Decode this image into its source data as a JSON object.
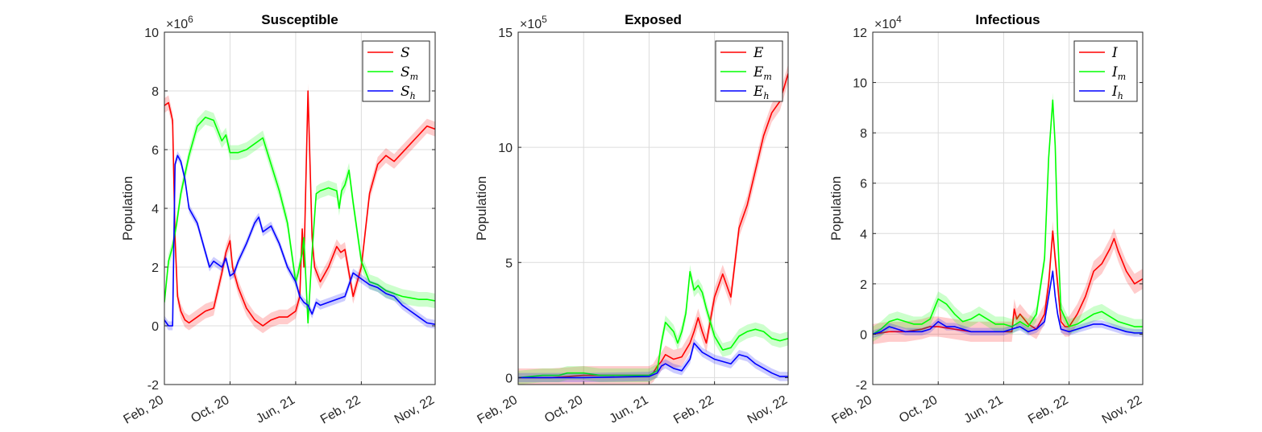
{
  "colors": {
    "S": "#ff0000",
    "Sm": "#00ff00",
    "Sh": "#0000ff",
    "grid": "#dcdcdc",
    "axis": "#262626"
  },
  "chart_data": [
    {
      "type": "line",
      "title": "Susceptible",
      "ylabel": "Population",
      "y_exponent_label": "×10",
      "y_exponent": "6",
      "ylim": [
        -2,
        10
      ],
      "yticks": [
        -2,
        0,
        2,
        4,
        6,
        8,
        10
      ],
      "ytick_labels": [
        "-2",
        "0",
        "2",
        "4",
        "6",
        "8",
        "10"
      ],
      "xlim": [
        0,
        33
      ],
      "xticks": [
        0,
        8,
        16,
        24,
        33
      ],
      "xtick_labels": [
        "Feb, 20",
        "Oct, 20",
        "Jun, 21",
        "Feb, 22",
        "Nov, 22"
      ],
      "legend_position": "top-right",
      "series": [
        {
          "name": "S",
          "sub": "",
          "color": "#ff0000",
          "band": 0.25,
          "x": [
            0,
            0.5,
            1,
            1.3,
            1.6,
            2,
            2.5,
            3,
            4,
            5,
            6,
            7,
            7.5,
            8,
            8.3,
            9,
            10,
            11,
            12,
            13,
            14,
            15,
            16,
            16.5,
            16.8,
            17,
            17.5,
            18,
            18.3,
            19,
            20,
            21,
            21.5,
            22,
            23,
            24,
            25,
            26,
            27,
            28,
            29,
            30,
            31,
            32,
            33
          ],
          "y": [
            7.5,
            7.6,
            7.0,
            3.0,
            1.0,
            0.5,
            0.2,
            0.1,
            0.3,
            0.5,
            0.6,
            1.8,
            2.5,
            2.9,
            2.0,
            1.3,
            0.6,
            0.2,
            0.0,
            0.2,
            0.3,
            0.3,
            0.5,
            1.0,
            3.3,
            2.0,
            8.0,
            3.0,
            2.0,
            1.5,
            2.0,
            2.7,
            2.5,
            2.6,
            1.0,
            2.0,
            4.5,
            5.5,
            5.8,
            5.6,
            5.9,
            6.2,
            6.5,
            6.8,
            6.7
          ]
        },
        {
          "name": "S",
          "sub": "m",
          "color": "#00ff00",
          "band": 0.25,
          "x": [
            0,
            0.5,
            1,
            1.5,
            2,
            3,
            4,
            5,
            6,
            7,
            7.5,
            8,
            9,
            10,
            11,
            12,
            13,
            14,
            15,
            15.5,
            16,
            16.3,
            16.8,
            17,
            17.5,
            18,
            18.5,
            19,
            20,
            21,
            21.3,
            21.6,
            22,
            22.5,
            23,
            24,
            25,
            26,
            27,
            28,
            29,
            30,
            31,
            32,
            33
          ],
          "y": [
            0.8,
            2.2,
            2.7,
            3.5,
            4.5,
            5.8,
            6.8,
            7.1,
            7.0,
            6.3,
            6.5,
            5.9,
            5.9,
            6.0,
            6.2,
            6.4,
            5.5,
            4.6,
            3.5,
            2.5,
            1.5,
            1.8,
            2.5,
            3.0,
            0.1,
            2.5,
            4.5,
            4.6,
            4.7,
            4.6,
            4.0,
            4.6,
            4.8,
            5.3,
            4.2,
            2.2,
            1.5,
            1.4,
            1.2,
            1.1,
            1.0,
            0.95,
            0.9,
            0.9,
            0.85
          ]
        },
        {
          "name": "S",
          "sub": "h",
          "color": "#0000ff",
          "band": 0.15,
          "x": [
            0,
            0.5,
            1,
            1.3,
            1.6,
            2,
            2.5,
            3,
            4,
            5,
            5.5,
            6,
            7,
            7.5,
            8,
            8.5,
            9,
            10,
            11,
            11.5,
            12,
            13,
            14,
            15,
            16,
            16.5,
            17,
            17.5,
            18,
            18.5,
            19,
            20,
            21,
            22,
            23,
            24,
            25,
            26,
            27,
            28,
            29,
            30,
            31,
            32,
            33
          ],
          "y": [
            0.2,
            0.0,
            0.0,
            5.5,
            5.8,
            5.6,
            5.0,
            4.0,
            3.5,
            2.5,
            2.0,
            2.2,
            2.0,
            2.3,
            1.7,
            1.8,
            2.2,
            2.8,
            3.5,
            3.7,
            3.2,
            3.4,
            2.8,
            2.0,
            1.5,
            1.0,
            0.8,
            0.7,
            0.4,
            0.8,
            0.7,
            0.8,
            0.9,
            1.0,
            1.8,
            1.6,
            1.4,
            1.3,
            1.1,
            1.0,
            0.7,
            0.5,
            0.3,
            0.1,
            0.05
          ]
        }
      ]
    },
    {
      "type": "line",
      "title": "Exposed",
      "ylabel": "Population",
      "y_exponent_label": "×10",
      "y_exponent": "5",
      "ylim": [
        -0.3,
        15
      ],
      "yticks": [
        0,
        5,
        10,
        15
      ],
      "ytick_labels": [
        "0",
        "5",
        "10",
        "15"
      ],
      "xlim": [
        0,
        33
      ],
      "xticks": [
        0,
        8,
        16,
        24,
        33
      ],
      "xtick_labels": [
        "Feb, 20",
        "Oct, 20",
        "Jun, 21",
        "Feb, 22",
        "Nov, 22"
      ],
      "legend_position": "top-right",
      "series": [
        {
          "name": "E",
          "sub": "",
          "color": "#ff0000",
          "band": 0.4,
          "x": [
            0,
            4,
            8,
            12,
            16,
            16.5,
            17,
            17.5,
            18,
            19,
            20,
            20.5,
            21,
            21.5,
            22,
            22.5,
            23,
            23.5,
            24,
            25,
            26,
            26.5,
            27,
            28,
            29,
            30,
            31,
            32,
            33
          ],
          "y": [
            0,
            0,
            0.1,
            0.1,
            0.1,
            0.2,
            0.5,
            0.7,
            1.0,
            0.8,
            0.9,
            1.2,
            1.5,
            2.0,
            2.6,
            2.0,
            1.5,
            2.5,
            3.5,
            4.5,
            3.5,
            5.0,
            6.5,
            7.5,
            9.0,
            10.5,
            11.5,
            12.0,
            13.2
          ]
        },
        {
          "name": "E",
          "sub": "m",
          "color": "#00ff00",
          "band": 0.3,
          "x": [
            0,
            3,
            5,
            6,
            8,
            10,
            12,
            14,
            16,
            17,
            17.5,
            18,
            19,
            19.5,
            20,
            20.5,
            21,
            21.5,
            22,
            22.5,
            23,
            24,
            25,
            26,
            27,
            28,
            29,
            30,
            31,
            32,
            33
          ],
          "y": [
            0,
            0.1,
            0.1,
            0.2,
            0.2,
            0.1,
            0.1,
            0.1,
            0.1,
            0.3,
            1.5,
            2.4,
            2.0,
            1.5,
            2.0,
            2.8,
            4.6,
            3.8,
            4.0,
            3.7,
            3.0,
            1.8,
            1.2,
            1.3,
            1.8,
            2.0,
            2.1,
            2.0,
            1.7,
            1.6,
            1.7
          ]
        },
        {
          "name": "E",
          "sub": "h",
          "color": "#0000ff",
          "band": 0.2,
          "x": [
            0,
            8,
            16,
            17,
            17.5,
            18,
            19,
            20,
            21,
            21.5,
            22,
            22.5,
            23,
            24,
            25,
            26,
            27,
            28,
            29,
            30,
            31,
            32,
            33
          ],
          "y": [
            0,
            0,
            0.05,
            0.2,
            0.5,
            0.6,
            0.4,
            0.3,
            0.8,
            1.5,
            1.3,
            1.1,
            1.0,
            0.8,
            0.7,
            0.6,
            1.0,
            0.9,
            0.6,
            0.4,
            0.2,
            0.05,
            0.05
          ]
        }
      ]
    },
    {
      "type": "line",
      "title": "Infectious",
      "ylabel": "Population",
      "y_exponent_label": "×10",
      "y_exponent": "4",
      "ylim": [
        -2,
        12
      ],
      "yticks": [
        -2,
        0,
        2,
        4,
        6,
        8,
        10,
        12
      ],
      "ytick_labels": [
        "-2",
        "0",
        "2",
        "4",
        "6",
        "8",
        "10",
        "12"
      ],
      "xlim": [
        0,
        33
      ],
      "xticks": [
        0,
        8,
        16,
        24,
        33
      ],
      "xtick_labels": [
        "Feb, 20",
        "Oct, 20",
        "Jun, 21",
        "Feb, 22",
        "Nov, 22"
      ],
      "legend_position": "top-right",
      "series": [
        {
          "name": "I",
          "sub": "",
          "color": "#ff0000",
          "band": 0.4,
          "x": [
            0,
            2,
            4,
            6,
            7,
            8,
            10,
            12,
            14,
            16,
            17,
            17.3,
            17.6,
            18,
            19,
            20,
            21,
            21.5,
            22,
            22.3,
            22.6,
            23,
            23.5,
            24,
            25,
            26,
            27,
            28,
            29,
            29.5,
            30,
            31,
            32,
            33
          ],
          "y": [
            0,
            0.1,
            0.1,
            0.2,
            0.3,
            0.3,
            0.2,
            0.1,
            0.1,
            0.1,
            0.1,
            1.0,
            0.6,
            0.8,
            0.4,
            0.2,
            0.8,
            2.0,
            4.1,
            3.0,
            2.0,
            0.5,
            0.3,
            0.3,
            0.8,
            1.5,
            2.5,
            2.8,
            3.4,
            3.8,
            3.3,
            2.5,
            2.0,
            2.2
          ]
        },
        {
          "name": "I",
          "sub": "m",
          "color": "#00ff00",
          "band": 0.3,
          "x": [
            0,
            1,
            2,
            3,
            4,
            5,
            6,
            7,
            7.5,
            8,
            9,
            10,
            11,
            12,
            13,
            14,
            15,
            16,
            17,
            18,
            19,
            20,
            21,
            21.5,
            22,
            22.3,
            22.6,
            23,
            24,
            25,
            26,
            27,
            28,
            29,
            30,
            31,
            32,
            33
          ],
          "y": [
            0,
            0.2,
            0.5,
            0.6,
            0.5,
            0.4,
            0.4,
            0.6,
            1.0,
            1.4,
            1.2,
            0.8,
            0.5,
            0.6,
            0.8,
            0.6,
            0.4,
            0.4,
            0.3,
            0.5,
            0.3,
            0.8,
            3.0,
            7.0,
            9.3,
            7.5,
            4.0,
            1.0,
            0.3,
            0.4,
            0.6,
            0.8,
            0.9,
            0.7,
            0.5,
            0.4,
            0.3,
            0.3
          ]
        },
        {
          "name": "I",
          "sub": "h",
          "color": "#0000ff",
          "band": 0.15,
          "x": [
            0,
            1,
            2,
            3,
            4,
            6,
            7,
            8,
            9,
            10,
            11,
            12,
            13,
            14,
            16,
            17,
            18,
            19,
            20,
            21,
            21.5,
            22,
            22.3,
            22.6,
            23,
            24,
            25,
            26,
            27,
            28,
            29,
            30,
            31,
            32,
            33
          ],
          "y": [
            0,
            0.1,
            0.3,
            0.2,
            0.1,
            0.1,
            0.2,
            0.5,
            0.3,
            0.3,
            0.2,
            0.1,
            0.1,
            0.1,
            0.1,
            0.2,
            0.3,
            0.1,
            0.2,
            0.5,
            1.5,
            2.5,
            1.5,
            0.8,
            0.2,
            0.1,
            0.2,
            0.3,
            0.4,
            0.4,
            0.3,
            0.2,
            0.1,
            0.05,
            0.05
          ]
        }
      ]
    }
  ]
}
